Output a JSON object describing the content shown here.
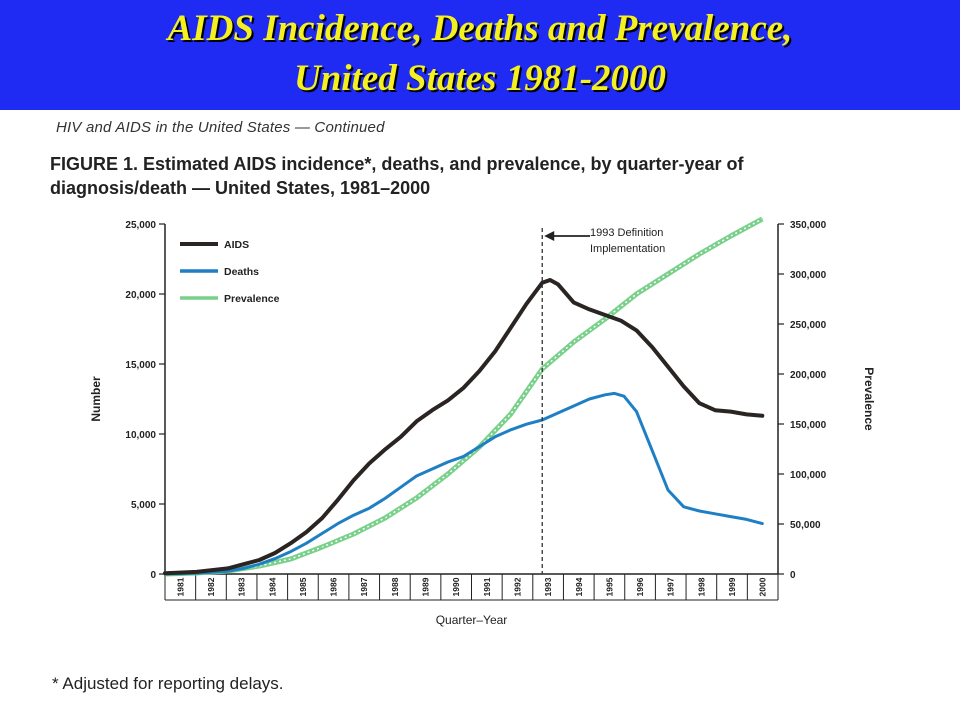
{
  "slide": {
    "title_line_1": "AIDS Incidence, Deaths and Prevalence,",
    "title_line_2": "United States 1981-2000",
    "header_note": "HIV and AIDS in the United States — Continued",
    "caption_line_1": "FIGURE 1. Estimated AIDS incidence*, deaths, and prevalence, by quarter-year of",
    "caption_line_2": "diagnosis/death — United States, 1981–2000",
    "footnote": "* Adjusted for reporting delays.",
    "annotation_line_1": "1993 Definition",
    "annotation_line_2": "Implementation"
  },
  "colors": {
    "banner": "#1f2bf2",
    "title_text": "#f5f020",
    "aids": "#2a2522",
    "deaths": "#1f7fc4",
    "prevalence": "#79d08a"
  },
  "chart_data": {
    "type": "line",
    "title": "",
    "xlabel": "Quarter–Year",
    "ylabel": "Number",
    "y2label": "Prevalence",
    "x_ticks": [
      "1981",
      "1982",
      "1983",
      "1984",
      "1985",
      "1986",
      "1987",
      "1988",
      "1989",
      "1990",
      "1991",
      "1992",
      "1993",
      "1994",
      "1995",
      "1996",
      "1997",
      "1998",
      "1999",
      "2000"
    ],
    "ylim": [
      0,
      25000
    ],
    "y_ticks": [
      "0",
      "5,000",
      "10,000",
      "15,000",
      "20,000",
      "25,000"
    ],
    "y2lim": [
      0,
      350000
    ],
    "y2_ticks": [
      "0",
      "50,000",
      "100,000",
      "150,000",
      "200,000",
      "250,000",
      "300,000",
      "350,000"
    ],
    "grid": false,
    "legend_position": "top-left",
    "annotation": {
      "x": 1993.0,
      "text": "1993 Definition Implementation"
    },
    "series": [
      {
        "name": "AIDS",
        "axis": "left",
        "color_key": "aids",
        "x": [
          1981,
          1982,
          1983,
          1983.5,
          1984,
          1984.5,
          1985,
          1985.5,
          1986,
          1986.5,
          1987,
          1987.5,
          1988,
          1988.5,
          1989,
          1989.5,
          1990,
          1990.5,
          1991,
          1991.5,
          1992,
          1992.5,
          1993,
          1993.25,
          1993.5,
          1994,
          1994.5,
          1995,
          1995.5,
          1996,
          1996.5,
          1997,
          1997.5,
          1998,
          1998.5,
          1999,
          1999.5,
          2000
        ],
        "y": [
          50,
          150,
          400,
          700,
          1000,
          1500,
          2200,
          3000,
          4000,
          5300,
          6700,
          7900,
          8900,
          9800,
          10900,
          11700,
          12400,
          13300,
          14500,
          15900,
          17600,
          19300,
          20800,
          21000,
          20700,
          19400,
          18900,
          18500,
          18100,
          17400,
          16200,
          14800,
          13400,
          12200,
          11700,
          11600,
          11400,
          11300
        ]
      },
      {
        "name": "Deaths",
        "axis": "left",
        "color_key": "deaths",
        "x": [
          1981,
          1982,
          1983,
          1983.5,
          1984,
          1984.5,
          1985,
          1985.5,
          1986,
          1986.5,
          1987,
          1987.5,
          1988,
          1988.5,
          1989,
          1989.5,
          1990,
          1990.5,
          1991,
          1991.5,
          1992,
          1992.5,
          1993,
          1993.5,
          1994,
          1994.5,
          1995,
          1995.3,
          1995.6,
          1996,
          1996.5,
          1997,
          1997.5,
          1998,
          1998.5,
          1999,
          1999.5,
          2000
        ],
        "y": [
          0,
          50,
          200,
          400,
          700,
          1100,
          1600,
          2200,
          2900,
          3600,
          4200,
          4700,
          5400,
          6200,
          7000,
          7500,
          8000,
          8400,
          9100,
          9800,
          10300,
          10700,
          11000,
          11500,
          12000,
          12500,
          12800,
          12900,
          12700,
          11600,
          8800,
          6000,
          4800,
          4500,
          4300,
          4100,
          3900,
          3600
        ]
      },
      {
        "name": "Prevalence",
        "axis": "right",
        "color_key": "prevalence",
        "x": [
          1981,
          1982,
          1983,
          1984,
          1985,
          1986,
          1987,
          1988,
          1989,
          1990,
          1991,
          1992,
          1993,
          1994,
          1995,
          1996,
          1997,
          1998,
          1999,
          2000
        ],
        "y": [
          0,
          1000,
          3000,
          8000,
          15000,
          27000,
          40000,
          56000,
          76000,
          100000,
          127000,
          160000,
          205000,
          232000,
          255000,
          280000,
          300000,
          320000,
          338000,
          355000
        ]
      }
    ]
  }
}
